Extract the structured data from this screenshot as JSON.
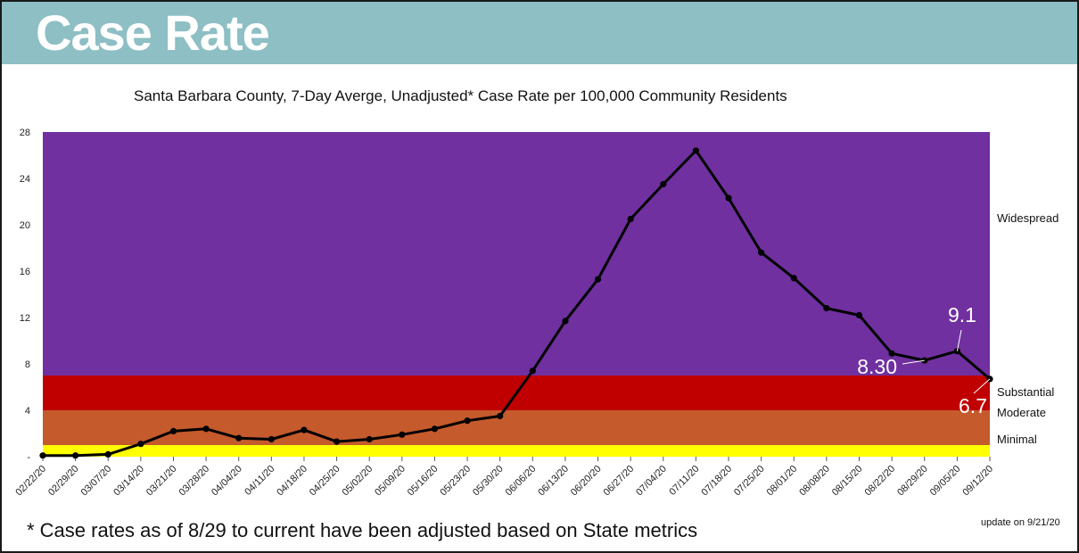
{
  "header": {
    "title": "Case Rate"
  },
  "footnote": "* Case rates as of 8/29 to current have been adjusted based on State metrics",
  "update_note": "update on 9/21/20",
  "colors": {
    "header_bg": "#8dbfc4",
    "widespread": "#7030a0",
    "substantial": "#c00000",
    "moderate": "#c55a2c",
    "minimal": "#ffff00",
    "line": "#000000"
  },
  "chart_data": {
    "type": "line",
    "title": "Santa Barbara County, 7-Day Averge, Unadjusted* Case Rate per 100,000 Community Residents",
    "xlabel": "",
    "ylabel": "",
    "ylim": [
      0,
      28
    ],
    "yticks": [
      {
        "value": 0,
        "label": "-"
      },
      {
        "value": 4,
        "label": "4"
      },
      {
        "value": 8,
        "label": "8"
      },
      {
        "value": 12,
        "label": "12"
      },
      {
        "value": 16,
        "label": "16"
      },
      {
        "value": 20,
        "label": "20"
      },
      {
        "value": 24,
        "label": "24"
      },
      {
        "value": 28,
        "label": "28"
      }
    ],
    "grid": false,
    "categories": [
      "02/22/20",
      "02/29/20",
      "03/07/20",
      "03/14/20",
      "03/21/20",
      "03/28/20",
      "04/04/20",
      "04/11/20",
      "04/18/20",
      "04/25/20",
      "05/02/20",
      "05/09/20",
      "05/16/20",
      "05/23/20",
      "05/30/20",
      "06/06/20",
      "06/13/20",
      "06/20/20",
      "06/27/20",
      "07/04/20",
      "07/11/20",
      "07/18/20",
      "07/25/20",
      "08/01/20",
      "08/08/20",
      "08/15/20",
      "08/22/20",
      "08/29/20",
      "09/05/20",
      "09/12/20"
    ],
    "series": [
      {
        "values": [
          0.1,
          0.1,
          0.2,
          1.1,
          2.2,
          2.4,
          1.6,
          1.5,
          2.3,
          1.3,
          1.5,
          1.9,
          2.4,
          3.1,
          3.5,
          7.4,
          11.7,
          15.3,
          20.5,
          23.5,
          26.4,
          22.3,
          17.6,
          15.4,
          12.8,
          12.2,
          8.9,
          8.3,
          9.1,
          6.7
        ]
      }
    ],
    "bands": [
      {
        "name": "Minimal",
        "from": 0,
        "to": 1,
        "color": "#ffff00"
      },
      {
        "name": "Moderate",
        "from": 1,
        "to": 4,
        "color": "#c55a2c"
      },
      {
        "name": "Substantial",
        "from": 4,
        "to": 7,
        "color": "#c00000"
      },
      {
        "name": "Widespread",
        "from": 7,
        "to": 28,
        "color": "#7030a0"
      }
    ],
    "annotations": [
      {
        "text": "9.1",
        "category": "09/05/20"
      },
      {
        "text": "8.30",
        "category": "08/29/20"
      },
      {
        "text": "6.7",
        "category": "09/12/20"
      }
    ]
  }
}
